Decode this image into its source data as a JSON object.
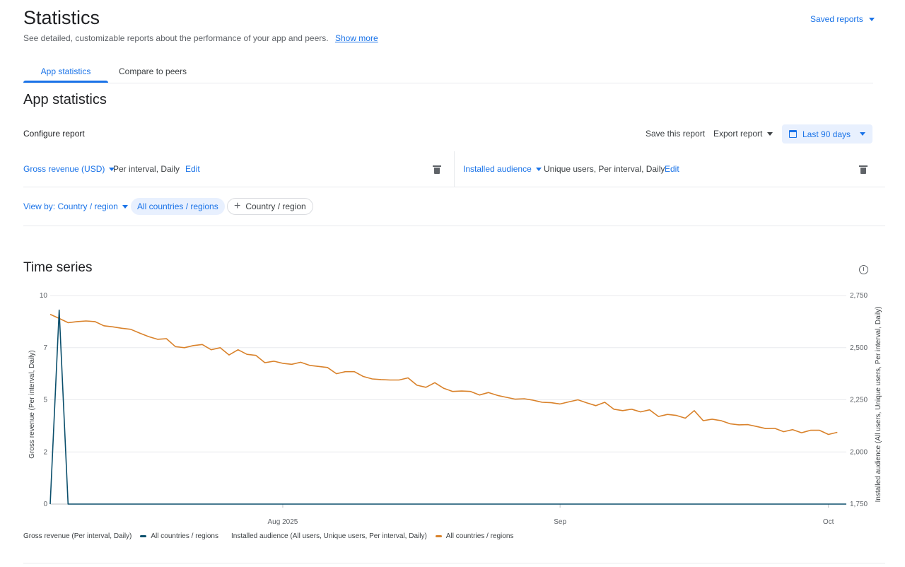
{
  "header": {
    "title": "Statistics",
    "subtitle": "See detailed, customizable reports about the performance of your app and peers.",
    "show_more": "Show more",
    "saved_reports": "Saved reports"
  },
  "tabs": [
    {
      "label": "App statistics",
      "active": true
    },
    {
      "label": "Compare to peers",
      "active": false
    }
  ],
  "section_title": "App statistics",
  "configure": {
    "label": "Configure report",
    "save_report": "Save this report",
    "export_report": "Export report",
    "date_range": "Last 90 days"
  },
  "metrics": [
    {
      "name": "Gross revenue (USD)",
      "detail": "Per interval, Daily",
      "edit": "Edit"
    },
    {
      "name": "Installed audience",
      "detail": "Unique users, Per interval, Daily",
      "edit": "Edit"
    }
  ],
  "filters": {
    "view_by": "View by: Country / region",
    "selected_chip": "All countries / regions",
    "add_chip": "Country / region"
  },
  "time_series": {
    "title": "Time series"
  },
  "colors": {
    "accent": "#1a73e8",
    "series_revenue": "#0b4f6c",
    "series_audience": "#d9822b"
  },
  "chart_data": {
    "type": "line",
    "x_tick_labels": [
      "Aug 2025",
      "Sep",
      "Oct"
    ],
    "x_range_days": [
      0,
      89
    ],
    "x_tick_days": [
      26,
      57,
      87
    ],
    "y_left": {
      "label": "Gross revenue (Per interval, Daily)",
      "ticks": [
        "10",
        "7",
        "5",
        "2",
        "0"
      ],
      "range": [
        0,
        10
      ]
    },
    "y_right": {
      "label": "Installed audience (All users, Unique users, Per interval, Daily)",
      "ticks": [
        "2,750",
        "2,500",
        "2,250",
        "2,000",
        "1,750"
      ],
      "range": [
        1750,
        2750
      ]
    },
    "grid": true,
    "legend_position": "bottom-left",
    "series": [
      {
        "name": "All countries / regions",
        "legend_group": "Gross revenue (Per interval, Daily)",
        "axis": "left",
        "values": [
          0,
          9.3,
          0,
          0,
          0,
          0,
          0,
          0,
          0,
          0,
          0,
          0,
          0,
          0,
          0,
          0,
          0,
          0,
          0,
          0,
          0,
          0,
          0,
          0,
          0,
          0,
          0,
          0,
          0,
          0,
          0,
          0,
          0,
          0,
          0,
          0,
          0,
          0,
          0,
          0,
          0,
          0,
          0,
          0,
          0,
          0,
          0,
          0,
          0,
          0,
          0,
          0,
          0,
          0,
          0,
          0,
          0,
          0,
          0,
          0,
          0,
          0,
          0,
          0,
          0,
          0,
          0,
          0,
          0,
          0,
          0,
          0,
          0,
          0,
          0,
          0,
          0,
          0,
          0,
          0,
          0,
          0,
          0,
          0,
          0,
          0,
          0,
          0,
          0,
          0
        ]
      },
      {
        "name": "All countries / regions",
        "legend_group": "Installed audience (All users, Unique users, Per interval, Daily)",
        "axis": "right",
        "values": [
          2660,
          2640,
          2620,
          2625,
          2628,
          2625,
          2605,
          2600,
          2593,
          2588,
          2570,
          2553,
          2540,
          2543,
          2505,
          2500,
          2510,
          2515,
          2490,
          2500,
          2465,
          2490,
          2468,
          2463,
          2428,
          2435,
          2425,
          2420,
          2430,
          2415,
          2410,
          2405,
          2375,
          2385,
          2385,
          2362,
          2350,
          2347,
          2345,
          2345,
          2355,
          2320,
          2310,
          2332,
          2305,
          2290,
          2292,
          2290,
          2273,
          2285,
          2271,
          2262,
          2253,
          2255,
          2248,
          2238,
          2236,
          2230,
          2240,
          2250,
          2235,
          2222,
          2238,
          2205,
          2198,
          2205,
          2192,
          2202,
          2170,
          2180,
          2175,
          2162,
          2198,
          2150,
          2157,
          2150,
          2135,
          2130,
          2131,
          2122,
          2112,
          2113,
          2097,
          2107,
          2092,
          2104,
          2104,
          2084,
          2094
        ]
      }
    ]
  }
}
